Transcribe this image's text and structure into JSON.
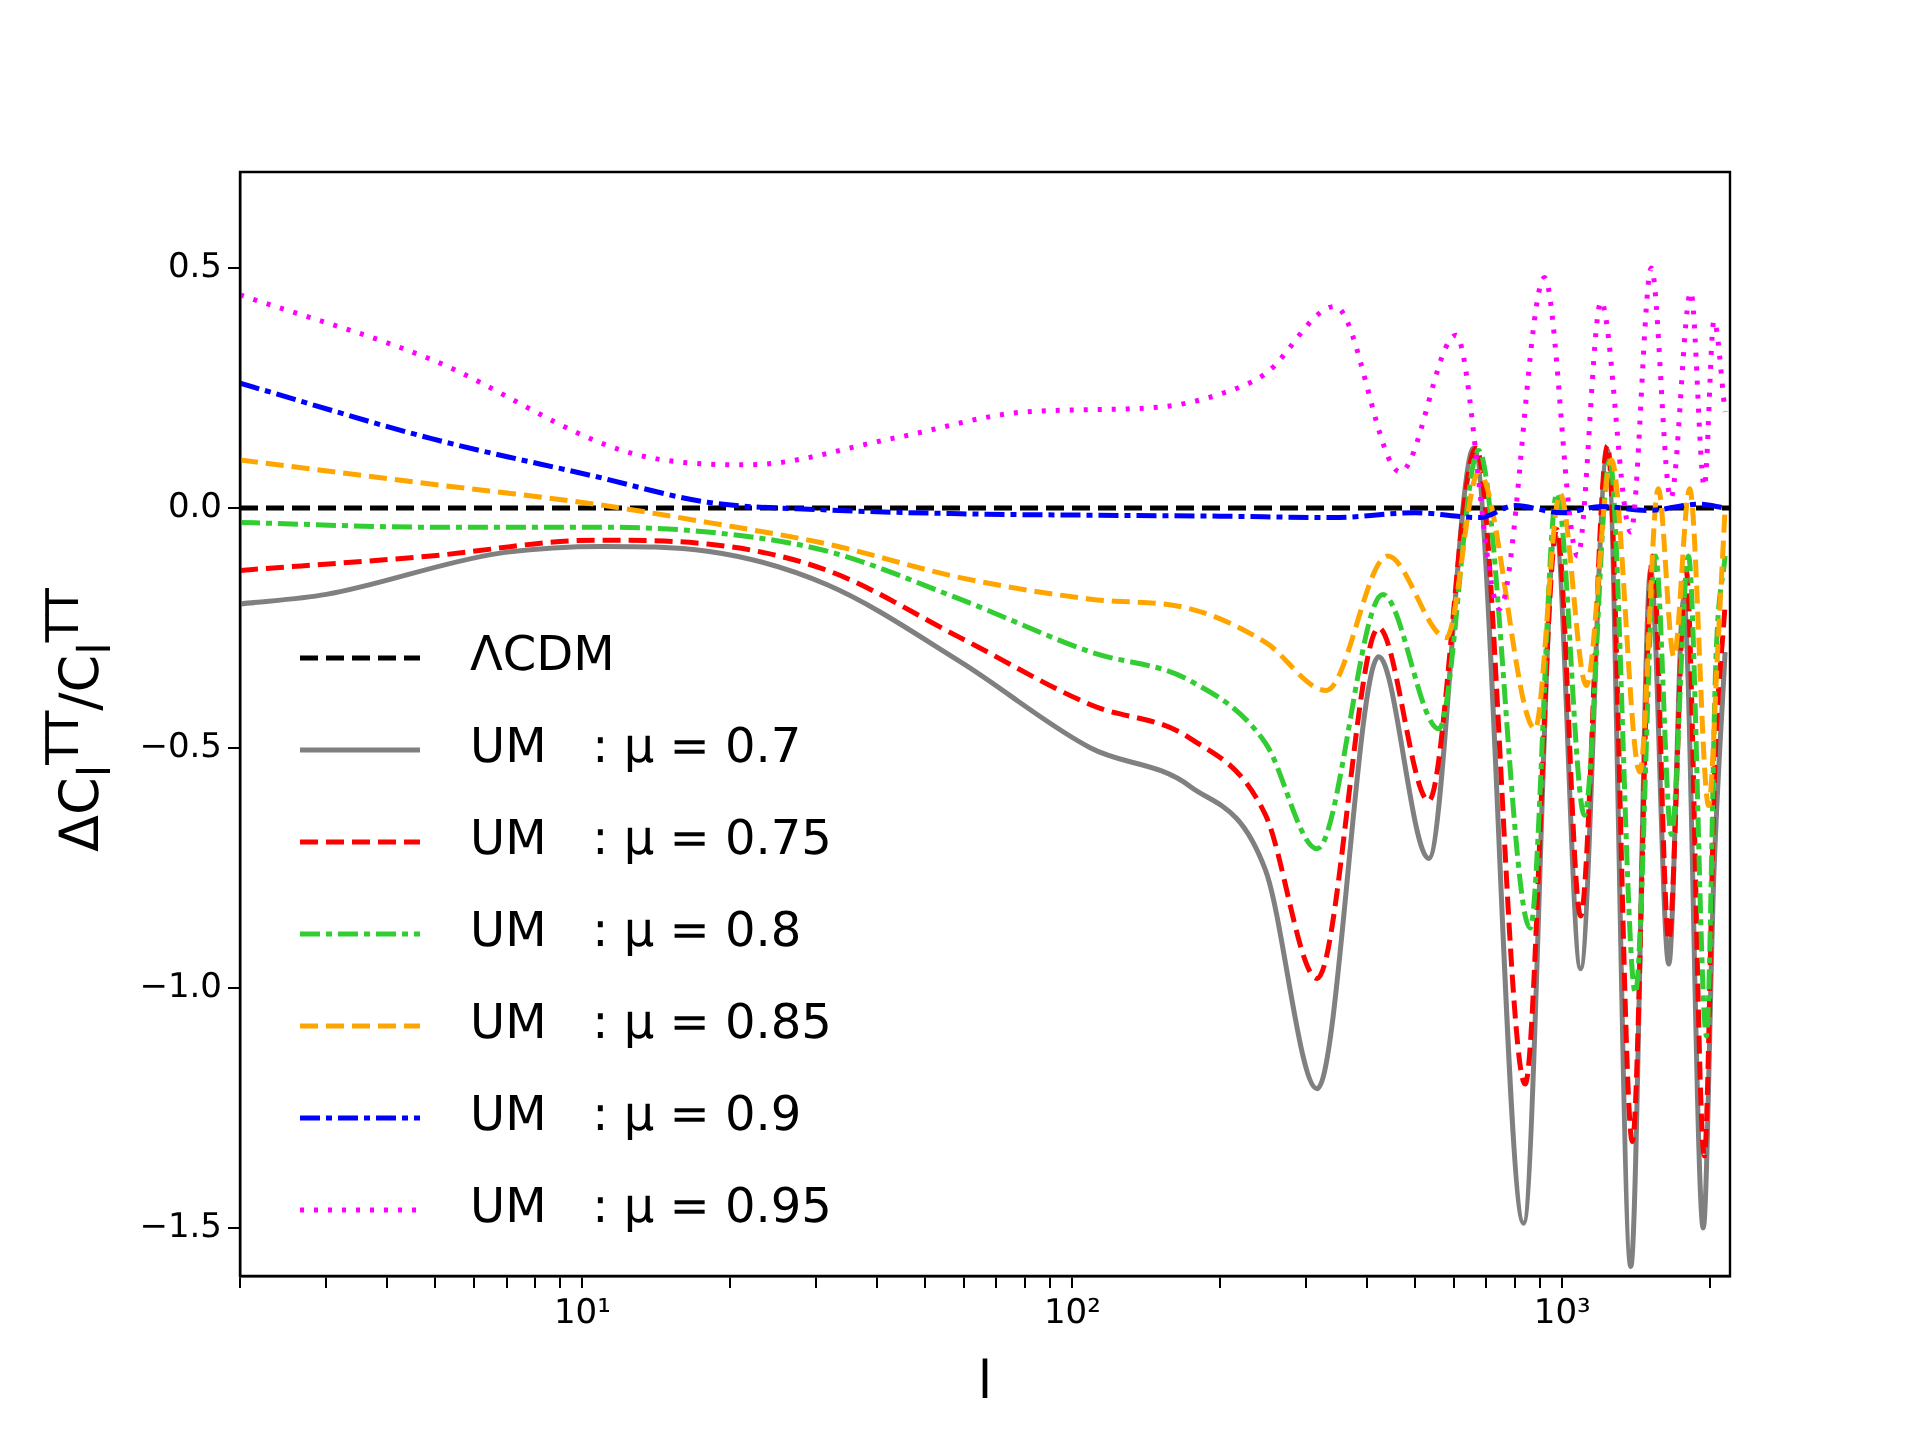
{
  "chart_data": {
    "type": "line",
    "xlabel": "l",
    "ylabel": "ΔC$_{l}$$^{TT}$/C$_{l}$$^{TT}$",
    "log": "x",
    "grid": false,
    "legend": "left",
    "marker": "none",
    "xlim": [
      2,
      2200
    ],
    "ylim": [
      -1.6,
      0.7
    ],
    "xticks": [
      {
        "value": 2,
        "label": null
      },
      {
        "value": 3,
        "label": null
      },
      {
        "value": 4,
        "label": null
      },
      {
        "value": 5,
        "label": null
      },
      {
        "value": 6,
        "label": null
      },
      {
        "value": 7,
        "label": null
      },
      {
        "value": 8,
        "label": null
      },
      {
        "value": 9,
        "label": null
      },
      {
        "value": 10,
        "label": "10¹"
      },
      {
        "value": 20,
        "label": null
      },
      {
        "value": 30,
        "label": null
      },
      {
        "value": 40,
        "label": null
      },
      {
        "value": 50,
        "label": null
      },
      {
        "value": 60,
        "label": null
      },
      {
        "value": 70,
        "label": null
      },
      {
        "value": 80,
        "label": null
      },
      {
        "value": 90,
        "label": null
      },
      {
        "value": 100,
        "label": "10²"
      },
      {
        "value": 200,
        "label": null
      },
      {
        "value": 300,
        "label": null
      },
      {
        "value": 400,
        "label": null
      },
      {
        "value": 500,
        "label": null
      },
      {
        "value": 600,
        "label": null
      },
      {
        "value": 700,
        "label": null
      },
      {
        "value": 800,
        "label": null
      },
      {
        "value": 900,
        "label": null
      },
      {
        "value": 1000,
        "label": "10³"
      },
      {
        "value": 2000,
        "label": null
      }
    ],
    "yticks": [
      {
        "value": 0.5,
        "label": "0.5"
      },
      {
        "value": 0,
        "label": "0.0"
      },
      {
        "value": -0.5,
        "label": "−0.5"
      },
      {
        "value": -1,
        "label": "−1.0"
      },
      {
        "value": -1.5,
        "label": "−1.5"
      }
    ],
    "series": [
      {
        "name": "ΛCDM",
        "color": "#000000",
        "line_style": "dashed",
        "x": [
          2,
          2200
        ],
        "values": [
          0,
          0
        ]
      },
      {
        "name": "UM   : μ = 0.7",
        "color": "#808080",
        "line_style": "solid",
        "x": [
          2,
          3,
          6.7,
          11,
          18,
          31.6,
          59,
          109,
          174,
          248,
          316,
          422,
          534,
          660,
          834,
          970,
          1090,
          1237,
          1380,
          1515,
          1650,
          1770,
          1940,
          2040,
          2150
        ],
        "values": [
          -0.2,
          -0.18,
          -0.095,
          -0.08,
          -0.09,
          -0.16,
          -0.32,
          -0.5,
          -0.58,
          -0.755,
          -1.21,
          -0.31,
          -0.73,
          0.125,
          -1.49,
          -0.06,
          -0.96,
          0.12,
          -1.58,
          -0.13,
          -0.95,
          -0.19,
          -1.5,
          -0.76,
          -0.3
        ]
      },
      {
        "name": "UM   : μ = 0.75",
        "color": "#ff0000",
        "line_style": "dashed",
        "x": [
          2,
          4.9,
          10.6,
          18,
          31.6,
          59,
          109,
          174,
          248,
          316,
          422,
          534,
          667,
          840,
          975,
          1090,
          1237,
          1390,
          1530,
          1650,
          1790,
          1950,
          2050,
          2150
        ],
        "values": [
          -0.13,
          -0.1,
          -0.067,
          -0.075,
          -0.13,
          -0.27,
          -0.41,
          -0.48,
          -0.64,
          -0.98,
          -0.25,
          -0.61,
          0.125,
          -1.2,
          -0.045,
          -0.85,
          0.13,
          -1.32,
          -0.1,
          -0.9,
          -0.13,
          -1.35,
          -0.53,
          -0.2
        ]
      },
      {
        "name": "UM   : μ = 0.8",
        "color": "#32cd32",
        "line_style": "dashdot",
        "x": [
          2,
          4.9,
          10.6,
          18,
          31.6,
          59,
          109,
          174,
          248,
          316,
          430,
          560,
          675,
          860,
          975,
          1110,
          1250,
          1410,
          1550,
          1670,
          1810,
          1970,
          2060,
          2150
        ],
        "values": [
          -0.03,
          -0.04,
          -0.04,
          -0.05,
          -0.09,
          -0.19,
          -0.3,
          -0.36,
          -0.49,
          -0.71,
          -0.18,
          -0.46,
          0.12,
          -0.875,
          0.03,
          -0.64,
          0.1,
          -1.01,
          -0.1,
          -0.68,
          -0.1,
          -1.1,
          -0.31,
          -0.1
        ]
      },
      {
        "name": "UM   : μ = 0.85",
        "color": "#ffa500",
        "line_style": "dashed",
        "x": [
          2,
          4.9,
          10.6,
          18,
          31.6,
          59,
          109,
          174,
          248,
          330,
          440,
          580,
          675,
          880,
          990,
          1120,
          1260,
          1440,
          1570,
          1690,
          1820,
          1990,
          2080,
          2150
        ],
        "values": [
          0.1,
          0.05,
          0.008,
          -0.03,
          -0.075,
          -0.145,
          -0.19,
          -0.21,
          -0.28,
          -0.38,
          -0.1,
          -0.27,
          0.075,
          -0.46,
          0.03,
          -0.37,
          0.1,
          -0.55,
          0.04,
          -0.31,
          0.04,
          -0.62,
          -0.28,
          0
        ]
      },
      {
        "name": "UM   : μ = 0.9",
        "color": "#0000ff",
        "line_style": "dashdot",
        "x": [
          2,
          4.9,
          10.6,
          18,
          31.6,
          59,
          109,
          200,
          340,
          500,
          680,
          800,
          1000,
          1200,
          1500,
          1900,
          2150
        ],
        "values": [
          0.26,
          0.145,
          0.066,
          0.012,
          -0.004,
          -0.012,
          -0.015,
          -0.017,
          -0.02,
          -0.01,
          -0.02,
          0.005,
          -0.01,
          0.003,
          -0.005,
          0.008,
          0
        ]
      },
      {
        "name": "UM   : μ = 0.95",
        "color": "#ff00ff",
        "line_style": "dotted",
        "x": [
          2,
          4.9,
          12.4,
          21.8,
          43,
          80,
          150,
          204,
          248,
          344,
          467,
          607,
          745,
          920,
          1075,
          1200,
          1380,
          1520,
          1665,
          1830,
          1950,
          2040,
          2150
        ],
        "values": [
          0.444,
          0.31,
          0.116,
          0.09,
          0.145,
          0.2,
          0.21,
          0.24,
          0.28,
          0.42,
          0.075,
          0.36,
          -0.21,
          0.48,
          -0.1,
          0.43,
          -0.05,
          0.5,
          0.02,
          0.45,
          0.045,
          0.39,
          0.2
        ]
      }
    ]
  }
}
